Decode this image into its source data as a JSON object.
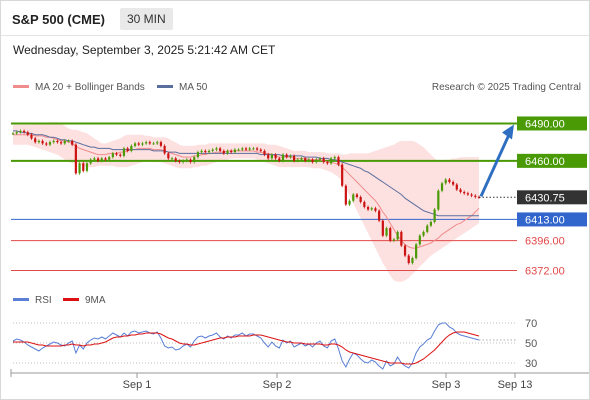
{
  "header": {
    "title": "S&P 500 (CME)",
    "interval": "30 MIN",
    "datetime": "Wednesday, September 3, 2025 5:21:42 AM CET"
  },
  "legend": {
    "ma20_label": "MA 20 + Bollinger Bands",
    "ma50_label": "MA 50",
    "credit": "Research © 2025 Trading Central",
    "rsi_label": "RSI",
    "rsi_ma_label": "9MA"
  },
  "colors": {
    "green": "#4a9a06",
    "blue": "#3366cc",
    "red": "#e34848",
    "band_fill": "#fde0e0",
    "ma20": "#f08c8c",
    "ma50": "#5b6f9e",
    "candle_up": "#4a9a06",
    "candle_down": "#cc1111",
    "rsi": "#5a7fd6",
    "rsi_ma": "#dd1111",
    "arrow": "#2e6fc2",
    "last_price_bg": "#333333"
  },
  "chart_data": [
    {
      "type": "candlestick",
      "y_range": [
        6362,
        6500
      ],
      "x_labels": [
        "Sep 1",
        "Sep 2",
        "Sep 3",
        "Sep 13"
      ],
      "last_price": "6430.75",
      "levels": [
        {
          "label": "6490.00",
          "value": 6490,
          "kind": "resistance",
          "color": "#4a9a06"
        },
        {
          "label": "6460.00",
          "value": 6460,
          "kind": "resistance",
          "color": "#4a9a06"
        },
        {
          "label": "6413.00",
          "value": 6413,
          "kind": "pivot",
          "color": "#3366cc"
        },
        {
          "label": "6396.00",
          "value": 6396,
          "kind": "support",
          "color": "#e34848"
        },
        {
          "label": "6372.00",
          "value": 6372,
          "kind": "support",
          "color": "#e34848"
        }
      ],
      "close": [
        6482,
        6483,
        6484,
        6483,
        6481,
        6478,
        6475,
        6476,
        6474,
        6473,
        6475,
        6476,
        6475,
        6474,
        6476,
        6476,
        6473,
        6450,
        6458,
        6452,
        6458,
        6461,
        6462,
        6460,
        6462,
        6461,
        6463,
        6466,
        6465,
        6464,
        6470,
        6468,
        6472,
        6474,
        6473,
        6474,
        6475,
        6474,
        6474,
        6475,
        6472,
        6466,
        6462,
        6462,
        6460,
        6459,
        6460,
        6461,
        6459,
        6463,
        6467,
        6468,
        6467,
        6468,
        6469,
        6470,
        6468,
        6466,
        6468,
        6467,
        6469,
        6469,
        6470,
        6469,
        6470,
        6470,
        6469,
        6468,
        6465,
        6462,
        6465,
        6462,
        6460,
        6465,
        6463,
        6464,
        6460,
        6461,
        6462,
        6460,
        6461,
        6459,
        6461,
        6462,
        6459,
        6458,
        6462,
        6463,
        6457,
        6440,
        6425,
        6428,
        6433,
        6431,
        6427,
        6423,
        6421,
        6422,
        6420,
        6412,
        6400,
        6406,
        6396,
        6397,
        6403,
        6392,
        6384,
        6378,
        6382,
        6393,
        6400,
        6403,
        6408,
        6411,
        6421,
        6436,
        6442,
        6445,
        6443,
        6441,
        6437,
        6435,
        6434,
        6433,
        6432,
        6431,
        6430.75
      ],
      "ma20": [
        6481,
        6481,
        6481,
        6481,
        6481,
        6481,
        6480,
        6480,
        6480,
        6479,
        6479,
        6478,
        6477,
        6476,
        6476,
        6475,
        6474,
        6472,
        6470,
        6469,
        6468,
        6467,
        6466,
        6465,
        6465,
        6465,
        6466,
        6466,
        6466,
        6467,
        6467,
        6468,
        6469,
        6469,
        6470,
        6470,
        6470,
        6470,
        6469,
        6469,
        6469,
        6468,
        6467,
        6466,
        6465,
        6464,
        6463,
        6463,
        6463,
        6464,
        6464,
        6465,
        6465,
        6466,
        6466,
        6467,
        6467,
        6467,
        6468,
        6468,
        6468,
        6468,
        6468,
        6468,
        6468,
        6468,
        6467,
        6467,
        6466,
        6466,
        6465,
        6464,
        6463,
        6463,
        6463,
        6463,
        6462,
        6462,
        6462,
        6462,
        6461,
        6461,
        6461,
        6461,
        6460,
        6459,
        6459,
        6458,
        6457,
        6455,
        6452,
        6449,
        6446,
        6443,
        6440,
        6437,
        6434,
        6431,
        6428,
        6424,
        6419,
        6415,
        6410,
        6405,
        6400,
        6396,
        6393,
        6391,
        6390,
        6390,
        6391,
        6392,
        6393,
        6394,
        6396,
        6398,
        6401,
        6403,
        6405,
        6407,
        6409,
        6410,
        6412,
        6414,
        6416,
        6419,
        6422
      ],
      "ma50": [
        6484,
        6484,
        6483,
        6483,
        6482,
        6482,
        6481,
        6481,
        6481,
        6480,
        6479,
        6479,
        6478,
        6477,
        6477,
        6476,
        6476,
        6475,
        6474,
        6473,
        6472,
        6471,
        6471,
        6470,
        6470,
        6470,
        6470,
        6469,
        6469,
        6469,
        6469,
        6469,
        6469,
        6469,
        6469,
        6469,
        6469,
        6469,
        6468,
        6468,
        6468,
        6468,
        6467,
        6467,
        6467,
        6466,
        6466,
        6466,
        6466,
        6466,
        6466,
        6466,
        6466,
        6466,
        6466,
        6466,
        6466,
        6466,
        6466,
        6466,
        6466,
        6466,
        6466,
        6466,
        6466,
        6466,
        6466,
        6465,
        6465,
        6465,
        6465,
        6465,
        6465,
        6464,
        6464,
        6464,
        6464,
        6464,
        6464,
        6463,
        6463,
        6463,
        6463,
        6462,
        6462,
        6462,
        6461,
        6461,
        6460,
        6459,
        6458,
        6457,
        6456,
        6455,
        6454,
        6452,
        6451,
        6449,
        6447,
        6445,
        6443,
        6441,
        6439,
        6437,
        6435,
        6433,
        6430,
        6428,
        6426,
        6424,
        6422,
        6420,
        6419,
        6418,
        6417,
        6416,
        6416,
        6416,
        6416,
        6416,
        6416,
        6416,
        6416,
        6416,
        6416,
        6416,
        6416
      ],
      "bb_upper": [
        6489,
        6489,
        6489,
        6489,
        6489,
        6489,
        6490,
        6490,
        6490,
        6490,
        6491,
        6491,
        6491,
        6490,
        6488,
        6486,
        6485,
        6485,
        6484,
        6483,
        6482,
        6480,
        6478,
        6476,
        6474,
        6474,
        6475,
        6476,
        6477,
        6478,
        6480,
        6481,
        6481,
        6481,
        6481,
        6481,
        6480,
        6480,
        6479,
        6479,
        6479,
        6479,
        6478,
        6476,
        6475,
        6473,
        6472,
        6472,
        6472,
        6472,
        6473,
        6473,
        6473,
        6474,
        6474,
        6474,
        6474,
        6474,
        6474,
        6474,
        6474,
        6474,
        6474,
        6474,
        6474,
        6474,
        6474,
        6474,
        6474,
        6473,
        6473,
        6473,
        6472,
        6471,
        6470,
        6469,
        6468,
        6468,
        6468,
        6468,
        6467,
        6467,
        6467,
        6467,
        6467,
        6466,
        6466,
        6466,
        6466,
        6465,
        6465,
        6466,
        6466,
        6466,
        6466,
        6466,
        6466,
        6467,
        6468,
        6469,
        6470,
        6471,
        6472,
        6473,
        6475,
        6476,
        6476,
        6476,
        6476,
        6475,
        6473,
        6471,
        6468,
        6465,
        6462,
        6460,
        6460,
        6461,
        6461,
        6462,
        6462,
        6463,
        6463,
        6463,
        6463,
        6463,
        6463
      ],
      "bb_lower": [
        6473,
        6473,
        6473,
        6473,
        6473,
        6472,
        6471,
        6470,
        6469,
        6468,
        6467,
        6466,
        6465,
        6463,
        6461,
        6459,
        6458,
        6458,
        6457,
        6456,
        6455,
        6455,
        6455,
        6456,
        6456,
        6456,
        6456,
        6456,
        6455,
        6455,
        6455,
        6455,
        6456,
        6457,
        6458,
        6459,
        6460,
        6460,
        6459,
        6459,
        6459,
        6458,
        6457,
        6456,
        6455,
        6454,
        6454,
        6454,
        6454,
        6455,
        6455,
        6456,
        6456,
        6457,
        6458,
        6459,
        6460,
        6460,
        6461,
        6462,
        6462,
        6462,
        6462,
        6462,
        6462,
        6462,
        6461,
        6460,
        6459,
        6458,
        6457,
        6456,
        6455,
        6455,
        6455,
        6455,
        6455,
        6455,
        6455,
        6455,
        6455,
        6454,
        6454,
        6454,
        6453,
        6452,
        6451,
        6449,
        6447,
        6443,
        6438,
        6432,
        6426,
        6420,
        6414,
        6408,
        6402,
        6396,
        6390,
        6384,
        6378,
        6373,
        6368,
        6364,
        6363,
        6363,
        6364,
        6366,
        6369,
        6372,
        6375,
        6378,
        6381,
        6384,
        6386,
        6388,
        6390,
        6392,
        6394,
        6396,
        6398,
        6400,
        6402,
        6404,
        6406,
        6408,
        6410
      ]
    },
    {
      "type": "line",
      "name": "RSI",
      "y_range": [
        20,
        80
      ],
      "y_ticks": [
        30,
        50,
        70
      ],
      "series": [
        {
          "name": "RSI",
          "values": [
            52,
            54,
            53,
            51,
            48,
            46,
            44,
            42,
            45,
            47,
            49,
            51,
            50,
            48,
            47,
            50,
            52,
            40,
            48,
            44,
            50,
            53,
            55,
            54,
            56,
            54,
            57,
            60,
            58,
            56,
            60,
            57,
            61,
            62,
            60,
            61,
            62,
            60,
            59,
            61,
            55,
            47,
            45,
            46,
            43,
            44,
            47,
            49,
            46,
            52,
            56,
            57,
            55,
            57,
            58,
            60,
            56,
            54,
            57,
            55,
            58,
            58,
            60,
            57,
            59,
            59,
            57,
            55,
            50,
            46,
            51,
            47,
            45,
            53,
            50,
            52,
            46,
            48,
            50,
            47,
            49,
            46,
            50,
            52,
            47,
            45,
            52,
            54,
            44,
            32,
            26,
            34,
            40,
            38,
            34,
            31,
            30,
            33,
            31,
            27,
            24,
            32,
            27,
            29,
            36,
            30,
            27,
            25,
            30,
            40,
            46,
            49,
            53,
            55,
            62,
            68,
            70,
            70,
            66,
            64,
            60,
            58,
            57,
            56,
            55,
            54,
            53
          ]
        },
        {
          "name": "9MA",
          "values": [
            51,
            51,
            51,
            51,
            51,
            50,
            49,
            48,
            48,
            47,
            47,
            47,
            47,
            47,
            48,
            48,
            49,
            48,
            48,
            47,
            48,
            48,
            49,
            49,
            50,
            51,
            53,
            55,
            56,
            56,
            57,
            57,
            58,
            58,
            59,
            59,
            60,
            60,
            60,
            60,
            59,
            57,
            55,
            54,
            52,
            50,
            49,
            49,
            48,
            48,
            49,
            50,
            51,
            52,
            53,
            54,
            55,
            55,
            56,
            56,
            56,
            57,
            57,
            57,
            57,
            58,
            58,
            58,
            57,
            56,
            55,
            54,
            53,
            52,
            51,
            51,
            50,
            50,
            50,
            49,
            49,
            49,
            49,
            49,
            48,
            48,
            49,
            49,
            48,
            46,
            43,
            41,
            40,
            39,
            38,
            37,
            36,
            35,
            34,
            33,
            32,
            31,
            30,
            30,
            30,
            30,
            29,
            29,
            29,
            30,
            32,
            34,
            37,
            40,
            43,
            47,
            51,
            55,
            58,
            60,
            61,
            61,
            61,
            60,
            59,
            58,
            57
          ]
        }
      ]
    }
  ]
}
